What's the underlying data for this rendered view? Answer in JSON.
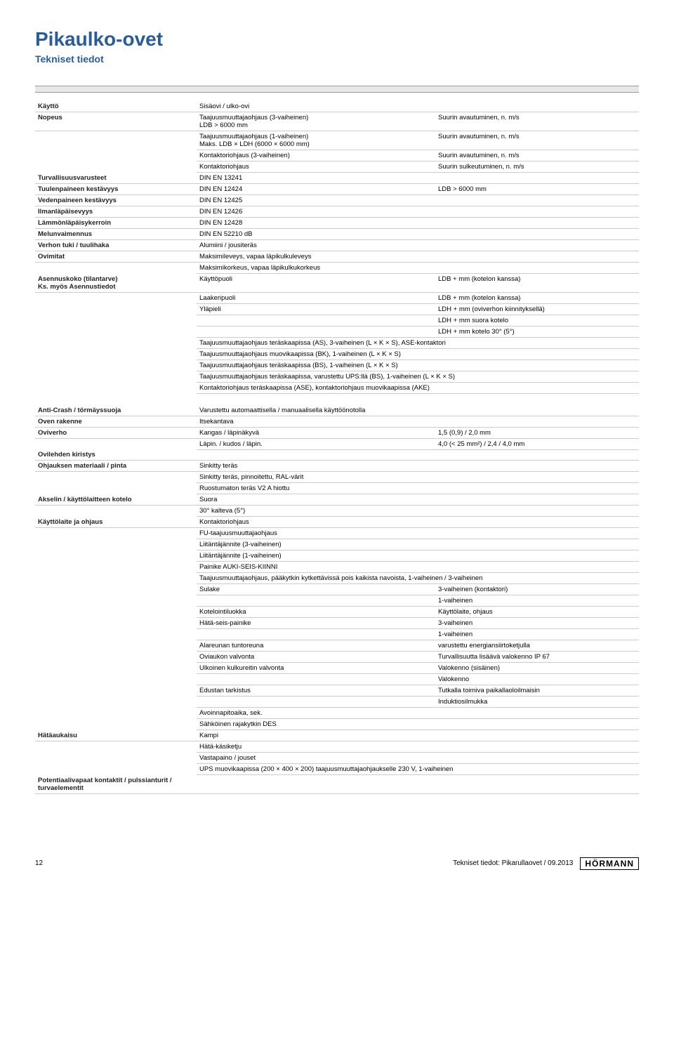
{
  "title": "Pikaulko-ovet",
  "subtitle": "Tekniset tiedot",
  "rows": [
    {
      "label": "Käyttö",
      "mid": "Sisäovi / ulko-ovi",
      "val": ""
    },
    {
      "label": "Nopeus",
      "mid": "Taajuusmuuttajaohjaus (3-vaiheinen)\nLDB > 6000 mm",
      "val": "Suurin avautuminen, n. m/s"
    },
    {
      "label": "",
      "mid": "Taajuusmuuttajaohjaus (1-vaiheinen)\nMaks. LDB × LDH (6000 × 6000 mm)",
      "val": "Suurin avautuminen, n. m/s"
    },
    {
      "label": "",
      "mid": "Kontaktoriohjaus (3-vaiheinen)",
      "val": "Suurin avautuminen, n. m/s"
    },
    {
      "label": "",
      "mid": "Kontaktoriohjaus",
      "val": "Suurin sulkeutuminen, n. m/s"
    },
    {
      "label": "Turvallisuusvarusteet",
      "mid": "DIN EN 13241",
      "val": ""
    },
    {
      "label": "Tuulenpaineen kestävyys",
      "mid": "DIN EN 12424",
      "val": "LDB > 6000 mm"
    },
    {
      "label": "Vedenpaineen kestävyys",
      "mid": "DIN EN 12425",
      "val": ""
    },
    {
      "label": "Ilmanläpäisevyys",
      "mid": "DIN EN 12426",
      "val": ""
    },
    {
      "label": "Lämmönläpäisykerroin",
      "mid": "DIN EN 12428",
      "val": ""
    },
    {
      "label": "Melunvaimennus",
      "mid": "DIN EN 52210 dB",
      "val": ""
    },
    {
      "label": "Verhon tuki / tuulihaka",
      "mid": "Alumiini / jousiteräs",
      "val": ""
    },
    {
      "label": "Ovimitat",
      "mid": "Maksimileveys, vapaa läpikulkuleveys",
      "val": ""
    },
    {
      "label": "",
      "mid": "Maksimikorkeus, vapaa läpikulkukorkeus",
      "val": ""
    },
    {
      "label": "Asennuskoko (tilantarve)\nKs. myös Asennustiedot",
      "mid": "Käyttöpuoli",
      "val": "LDB + mm (kotelon kanssa)"
    },
    {
      "label": "",
      "mid": "Laakeripuoli",
      "val": "LDB + mm (kotelon kanssa)"
    },
    {
      "label": "",
      "mid": "Yläpieli",
      "val": "LDH + mm (oviverhon kiinnityksellä)"
    },
    {
      "label": "",
      "mid": "",
      "val": "LDH + mm suora kotelo"
    },
    {
      "label": "",
      "mid": "",
      "val": "LDH + mm kotelo 30° (5°)"
    },
    {
      "label": "",
      "mid": "Taajuusmuuttajaohjaus teräskaapissa (AS), 3-vaiheinen (L × K × S), ASE-kontaktori",
      "val": "",
      "span": true
    },
    {
      "label": "",
      "mid": "Taajuusmuuttajaohjaus muovikaapissa (BK), 1-vaiheinen (L × K × S)",
      "val": "",
      "span": true
    },
    {
      "label": "",
      "mid": "Taajuusmuuttajaohjaus teräskaapissa (BS), 1-vaiheinen (L × K × S)",
      "val": "",
      "span": true
    },
    {
      "label": "",
      "mid": "Taajuusmuuttajaohjaus teräskaapissa, varustettu UPS:llä (BS), 1-vaiheinen (L × K × S)",
      "val": "",
      "span": true
    },
    {
      "label": "",
      "mid": "Kontaktoriohjaus teräskaapissa (ASE), kontaktoriohjaus muovikaapissa (AKE)",
      "val": "",
      "span": true
    }
  ],
  "rows2": [
    {
      "label": "Anti-Crash / törmäyssuoja",
      "mid": "Varustettu automaattisella / manuaalisella käyttöönotolla",
      "val": ""
    },
    {
      "label": "Oven rakenne",
      "mid": "Itsekantava",
      "val": ""
    },
    {
      "label": "Oviverho",
      "mid": "Kangas / läpinäkyvä",
      "val": "1,5 (0,9) / 2,0 mm"
    },
    {
      "label": "",
      "mid": "Läpin. / kudos / läpin.",
      "val": "4,0 (< 25 mm²) / 2,4 / 4,0 mm"
    },
    {
      "label": "Ovilehden kiristys",
      "mid": "",
      "val": ""
    },
    {
      "label": "Ohjauksen materiaali / pinta",
      "mid": "Sinkitty teräs",
      "val": ""
    },
    {
      "label": "",
      "mid": "Sinkitty teräs, pinnoitettu, RAL-värit",
      "val": ""
    },
    {
      "label": "",
      "mid": "Ruostumaton teräs V2 A hiottu",
      "val": ""
    },
    {
      "label": "Akselin / käyttölaitteen kotelo",
      "mid": "Suora",
      "val": ""
    },
    {
      "label": "",
      "mid": "30° kalteva (5°)",
      "val": ""
    },
    {
      "label": "Käyttölaite ja ohjaus",
      "mid": "Kontaktoriohjaus",
      "val": ""
    },
    {
      "label": "",
      "mid": "FU-taajuusmuuttajaohjaus",
      "val": ""
    },
    {
      "label": "",
      "mid": "Liitäntäjännite (3-vaiheinen)",
      "val": ""
    },
    {
      "label": "",
      "mid": "Liitäntäjännite (1-vaiheinen)",
      "val": ""
    },
    {
      "label": "",
      "mid": "Painike AUKI-SEIS-KIINNI",
      "val": ""
    },
    {
      "label": "",
      "mid": "Taajuusmuuttajaohjaus, pääkytkin kytkettävissä pois kaikista navoista, 1-vaiheinen / 3-vaiheinen",
      "val": "",
      "span": true
    },
    {
      "label": "",
      "mid": "Sulake",
      "val": "3-vaiheinen (kontaktori)"
    },
    {
      "label": "",
      "mid": "",
      "val": "1-vaiheinen"
    },
    {
      "label": "",
      "mid": "Kotelointiluokka",
      "val": "Käyttölaite, ohjaus"
    },
    {
      "label": "",
      "mid": "Hätä-seis-painike",
      "val": "3-vaiheinen"
    },
    {
      "label": "",
      "mid": "",
      "val": "1-vaiheinen"
    },
    {
      "label": "",
      "mid": "Alareunan tuntoreuna",
      "val": "varustettu energiansiirtoketjulla"
    },
    {
      "label": "",
      "mid": "Oviaukon valvonta",
      "val": "Turvallisuutta lisäävä valokenno IP 67"
    },
    {
      "label": "",
      "mid": "Ulkoinen kulkureitin valvonta",
      "val": "Valokenno (sisäinen)"
    },
    {
      "label": "",
      "mid": "",
      "val": "Valokenno"
    },
    {
      "label": "",
      "mid": "Edustan tarkistus",
      "val": "Tutkalla toimiva paikallaoloilmaisin"
    },
    {
      "label": "",
      "mid": "",
      "val": "Induktiosilmukka"
    },
    {
      "label": "",
      "mid": "Avoinnapitoaika, sek.",
      "val": ""
    },
    {
      "label": "",
      "mid": "Sähköinen rajakytkin DES",
      "val": ""
    },
    {
      "label": "Hätäaukaisu",
      "mid": "Kampi",
      "val": ""
    },
    {
      "label": "",
      "mid": "Hätä-käsiketju",
      "val": ""
    },
    {
      "label": "",
      "mid": "Vastapaino / jouset",
      "val": ""
    },
    {
      "label": "",
      "mid": "UPS muovikaapissa (200 × 400 × 200) taajuusmuuttajaohjaukselle 230 V, 1-vaiheinen",
      "val": "",
      "span": true
    },
    {
      "label": "Potentiaalivapaat kontaktit / pulssianturit / turvaelementit",
      "mid": "",
      "val": ""
    }
  ],
  "footer": {
    "page": "12",
    "text": "Tekniset tiedot: Pikarullaovet / 09.2013",
    "brand": "HÖRMANN"
  }
}
